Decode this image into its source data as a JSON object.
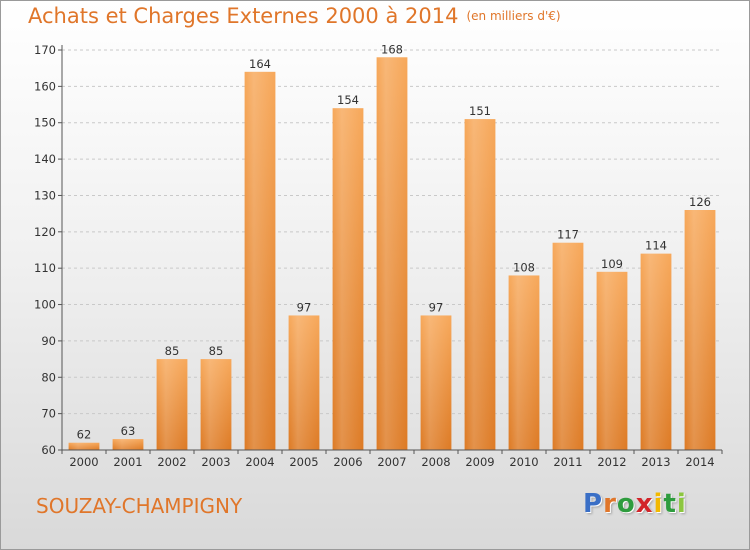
{
  "title": "Achats et Charges Externes 2000 à 2014",
  "subtitle": "(en milliers d'€)",
  "commune": "SOUZAY-CHAMPIGNY",
  "logo": {
    "letters": [
      "P",
      "r",
      "o",
      "x",
      "i",
      "t",
      "i"
    ],
    "colors": [
      "#3a6fc6",
      "#e0762a",
      "#2e9c3e",
      "#d2252a",
      "#f2b800",
      "#2e9c3e",
      "#8cc63f"
    ]
  },
  "chart_data": {
    "type": "bar",
    "categories": [
      "2000",
      "2001",
      "2002",
      "2003",
      "2004",
      "2005",
      "2006",
      "2007",
      "2008",
      "2009",
      "2010",
      "2011",
      "2012",
      "2013",
      "2014"
    ],
    "values": [
      62,
      63,
      85,
      85,
      164,
      97,
      154,
      168,
      97,
      151,
      108,
      117,
      109,
      114,
      126
    ],
    "ylim": [
      60,
      170
    ],
    "yticks": [
      60,
      70,
      80,
      90,
      100,
      110,
      120,
      130,
      140,
      150,
      160,
      170
    ],
    "grid": true,
    "bar_color": "#f0963c"
  }
}
